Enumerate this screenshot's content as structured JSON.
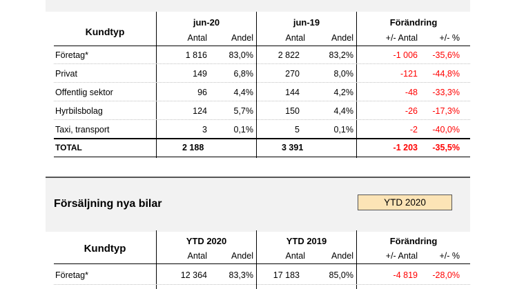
{
  "table1": {
    "col_kundtyp": "Kundtyp",
    "period_a": "jun-20",
    "period_b": "jun-19",
    "change": "Förändring",
    "sub_antal": "Antal",
    "sub_andel": "Andel",
    "sub_diff_antal": "+/- Antal",
    "sub_diff_pct": "+/- %",
    "rows": [
      {
        "label": "Företag*",
        "a_antal": "1 816",
        "a_andel": "83,0%",
        "b_antal": "2 822",
        "b_andel": "83,2%",
        "d_antal": "-1 006",
        "d_pct": "-35,6%"
      },
      {
        "label": "Privat",
        "a_antal": "149",
        "a_andel": "6,8%",
        "b_antal": "270",
        "b_andel": "8,0%",
        "d_antal": "-121",
        "d_pct": "-44,8%"
      },
      {
        "label": "Offentlig sektor",
        "a_antal": "96",
        "a_andel": "4,4%",
        "b_antal": "144",
        "b_andel": "4,2%",
        "d_antal": "-48",
        "d_pct": "-33,3%"
      },
      {
        "label": "Hyrbilsbolag",
        "a_antal": "124",
        "a_andel": "5,7%",
        "b_antal": "150",
        "b_andel": "4,4%",
        "d_antal": "-26",
        "d_pct": "-17,3%"
      },
      {
        "label": "Taxi, transport",
        "a_antal": "3",
        "a_andel": "0,1%",
        "b_antal": "5",
        "b_andel": "0,1%",
        "d_antal": "-2",
        "d_pct": "-40,0%"
      }
    ],
    "total": {
      "label": "TOTAL",
      "a_antal": "2 188",
      "b_antal": "3 391",
      "d_antal": "-1 203",
      "d_pct": "-35,5%"
    }
  },
  "section2": {
    "title": "Försäljning nya bilar",
    "selector_value": "YTD 2020"
  },
  "table2": {
    "col_kundtyp": "Kundtyp",
    "period_a": "YTD 2020",
    "period_b": "YTD 2019",
    "change": "Förändring",
    "sub_antal": "Antal",
    "sub_andel": "Andel",
    "sub_diff_antal": "+/- Antal",
    "sub_diff_pct": "+/- %",
    "rows": [
      {
        "label": "Företag*",
        "a_antal": "12 364",
        "a_andel": "83,3%",
        "b_antal": "17 183",
        "b_andel": "85,0%",
        "d_antal": "-4 819",
        "d_pct": "-28,0%"
      }
    ]
  }
}
